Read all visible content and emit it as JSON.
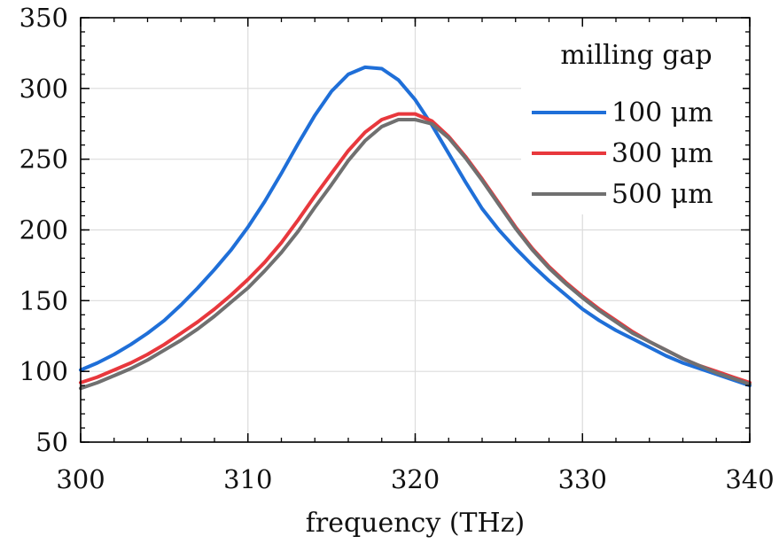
{
  "chart_data": {
    "type": "line",
    "title": "",
    "xlabel": "frequency (THz)",
    "ylabel": "",
    "xlim": [
      300,
      340
    ],
    "ylim": [
      50,
      350
    ],
    "xticks": [
      300,
      310,
      320,
      330,
      340
    ],
    "yticks": [
      50,
      100,
      150,
      200,
      250,
      300,
      350
    ],
    "xtick_labels": [
      "300",
      "310",
      "320",
      "330",
      "340"
    ],
    "ytick_labels": [
      "50",
      "100",
      "150",
      "200",
      "250",
      "300",
      "350"
    ],
    "grid": true,
    "legend": {
      "title": "milling gap",
      "placement": "top-right"
    },
    "series": [
      {
        "name": "100 μm",
        "color": "#1f6fd8",
        "x": [
          300,
          301,
          302,
          303,
          304,
          305,
          306,
          307,
          308,
          309,
          310,
          311,
          312,
          313,
          314,
          315,
          316,
          317,
          318,
          319,
          320,
          321,
          322,
          323,
          324,
          325,
          326,
          327,
          328,
          329,
          330,
          331,
          332,
          333,
          334,
          335,
          336,
          337,
          338,
          339,
          340
        ],
        "y": [
          101,
          106,
          112,
          119,
          127,
          136,
          147,
          159,
          172,
          186,
          202,
          220,
          240,
          261,
          281,
          298,
          310,
          315,
          314,
          306,
          292,
          274,
          254,
          234,
          215,
          200,
          187,
          175,
          164,
          154,
          144,
          136,
          129,
          123,
          117,
          111,
          106,
          102,
          98,
          94,
          90
        ]
      },
      {
        "name": "300 μm",
        "color": "#e8383d",
        "x": [
          300,
          301,
          302,
          303,
          304,
          305,
          306,
          307,
          308,
          309,
          310,
          311,
          312,
          313,
          314,
          315,
          316,
          317,
          318,
          319,
          320,
          321,
          322,
          323,
          324,
          325,
          326,
          327,
          328,
          329,
          330,
          331,
          332,
          333,
          334,
          335,
          336,
          337,
          338,
          339,
          340
        ],
        "y": [
          92,
          96,
          101,
          106,
          112,
          119,
          127,
          135,
          144,
          154,
          165,
          177,
          191,
          207,
          224,
          240,
          256,
          269,
          278,
          282,
          282,
          277,
          266,
          252,
          236,
          219,
          202,
          187,
          174,
          163,
          153,
          144,
          136,
          128,
          121,
          115,
          109,
          104,
          100,
          96,
          92
        ]
      },
      {
        "name": "500 μm",
        "color": "#707070",
        "x": [
          300,
          301,
          302,
          303,
          304,
          305,
          306,
          307,
          308,
          309,
          310,
          311,
          312,
          313,
          314,
          315,
          316,
          317,
          318,
          319,
          320,
          321,
          322,
          323,
          324,
          325,
          326,
          327,
          328,
          329,
          330,
          331,
          332,
          333,
          334,
          335,
          336,
          337,
          338,
          339,
          340
        ],
        "y": [
          88,
          92,
          97,
          102,
          108,
          115,
          122,
          130,
          139,
          149,
          159,
          171,
          184,
          199,
          216,
          232,
          249,
          263,
          273,
          278,
          278,
          275,
          265,
          251,
          235,
          218,
          201,
          186,
          173,
          162,
          152,
          143,
          135,
          127,
          121,
          115,
          109,
          104,
          99,
          95,
          91
        ]
      }
    ]
  }
}
